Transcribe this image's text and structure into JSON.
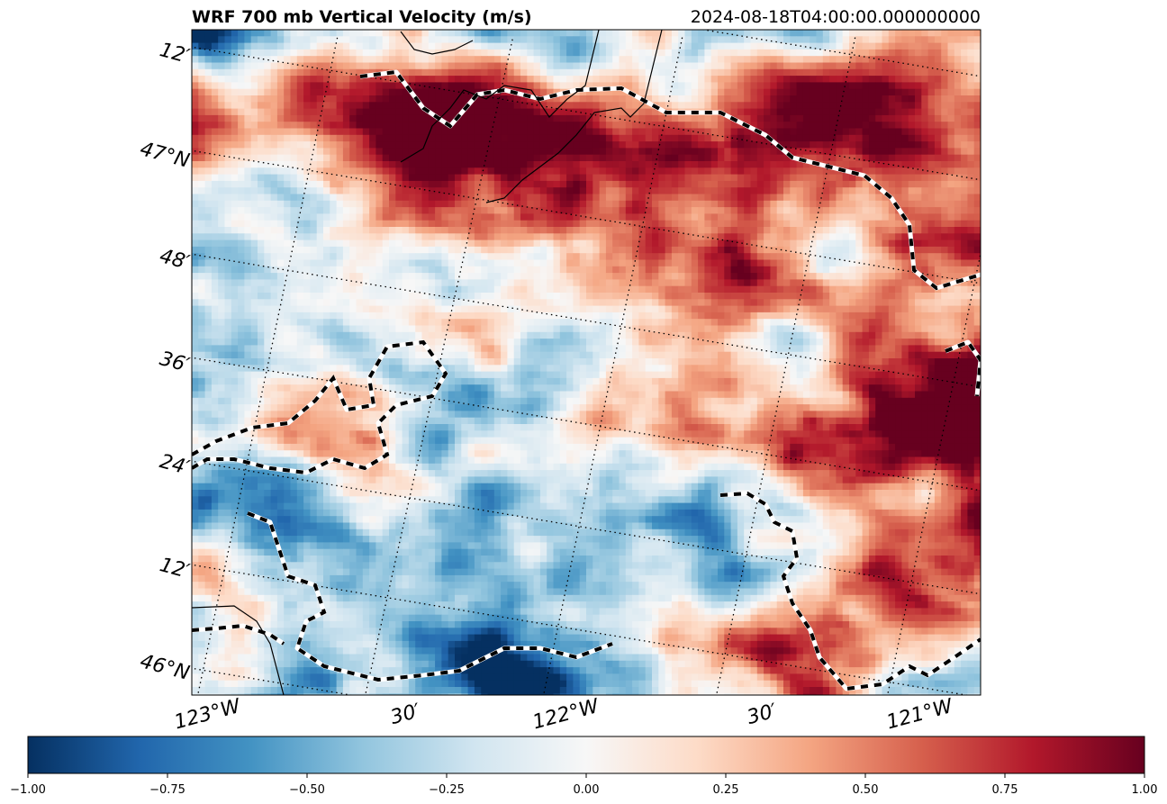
{
  "chart_data": {
    "type": "heatmap",
    "title": "WRF 700 mb Vertical Velocity (m/s)",
    "valid_time": "2024-08-18T04:00:00.000000000",
    "colormap": "RdBu_r",
    "colorbar": {
      "vmin": -1.0,
      "vmax": 1.0,
      "ticks": [
        -1.0,
        -0.75,
        -0.5,
        -0.25,
        0.0,
        0.25,
        0.5,
        0.75,
        1.0
      ],
      "tick_labels": [
        "−1.00",
        "−0.75",
        "−0.50",
        "−0.25",
        "0.00",
        "0.25",
        "0.50",
        "0.75",
        "1.00"
      ],
      "colors": [
        "#053061",
        "#2166ac",
        "#4393c3",
        "#92c5de",
        "#d1e5f0",
        "#f7f7f7",
        "#fddbc7",
        "#f4a582",
        "#d6604d",
        "#b2182b",
        "#67001f"
      ]
    },
    "lon_labels": [
      "123°W",
      "30′",
      "122°W",
      "30′",
      "121°W"
    ],
    "lat_labels": [
      "46°N",
      "12′",
      "24′",
      "36′",
      "48′",
      "47°N",
      "12′"
    ],
    "lon_range": [
      -123.0,
      -121.0
    ],
    "lat_range": [
      46.0,
      47.25
    ],
    "gridlines": "dotted",
    "overlays": [
      "coastline (black)",
      "state/county borders (dashed black-white)"
    ]
  },
  "colors": {
    "strong_negative": "#053061",
    "neutral": "#f7f7f7",
    "strong_positive": "#67001f"
  }
}
